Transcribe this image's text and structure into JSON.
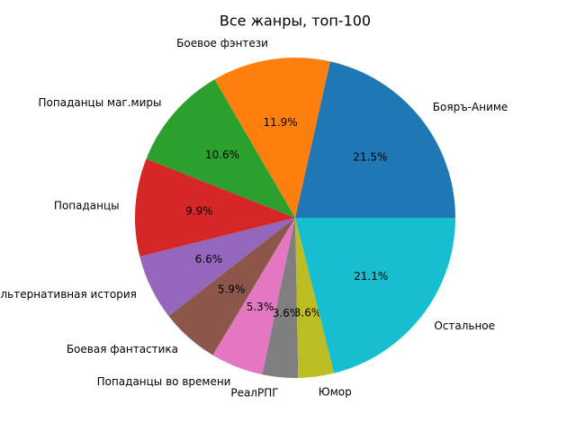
{
  "chart_data": {
    "type": "pie",
    "title": "Все жанры, топ-100",
    "categories": [
      "Бояръ-Аниме",
      "Боевое фэнтези",
      "Попаданцы маг.миры",
      "Попаданцы",
      "Альтернативная история",
      "Боевая фантастика",
      "Попаданцы во времени",
      "РеалРПГ",
      "Юмор",
      "Остальное"
    ],
    "values": [
      21.5,
      11.9,
      10.6,
      9.9,
      6.6,
      5.9,
      5.3,
      3.6,
      3.6,
      21.1
    ],
    "value_labels": [
      "21.5%",
      "11.9%",
      "10.6%",
      "9.9%",
      "6.6%",
      "5.9%",
      "5.3%",
      "3.6%",
      "3.6%",
      "21.1%"
    ],
    "colors": [
      "#1f77b4",
      "#ff7f0e",
      "#2ca02c",
      "#d62728",
      "#9467bd",
      "#8c564b",
      "#e377c2",
      "#7f7f7f",
      "#bcbd22",
      "#17becf"
    ]
  }
}
